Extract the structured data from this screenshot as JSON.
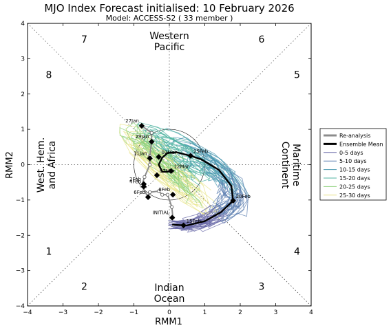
{
  "chart_data": {
    "type": "line",
    "title": "MJO Index Forecast initialised:  10  February 2026",
    "subtitle": "Model: ACCESS-S2 ( 33 member )",
    "xlabel": "RMM1",
    "ylabel": "RMM2",
    "xlim": [
      -4,
      4
    ],
    "ylim": [
      -4,
      4
    ],
    "xticks": [
      "−4",
      "−3",
      "−2",
      "−1",
      "0",
      "1",
      "2",
      "3",
      "4"
    ],
    "yticks": [
      "−4",
      "−3",
      "−2",
      "−1",
      "0",
      "1",
      "2",
      "3",
      "4"
    ],
    "grid": false,
    "legend_position": "right",
    "phases": [
      "1",
      "2",
      "3",
      "4",
      "5",
      "6",
      "7",
      "8"
    ],
    "regions": {
      "top": [
        "Western",
        "Pacific"
      ],
      "bottom": [
        "Indian",
        "Ocean"
      ],
      "left": [
        "West. Hem.",
        "and Africa"
      ],
      "right": [
        "Maritime",
        "Continent"
      ]
    },
    "legend": [
      {
        "label": "Re-analysis",
        "color": "#8c8c8c",
        "width": 3
      },
      {
        "label": "Ensemble Mean",
        "color": "#000000",
        "width": 3
      },
      {
        "label": "0-5 days",
        "color": "#6a6aa8",
        "width": 1
      },
      {
        "label": "5-10 days",
        "color": "#5c7fb0",
        "width": 1
      },
      {
        "label": "10-15 days",
        "color": "#4a97b0",
        "width": 1
      },
      {
        "label": "15-20 days",
        "color": "#4fb3a0",
        "width": 1
      },
      {
        "label": "20-25 days",
        "color": "#8cd07a",
        "width": 1
      },
      {
        "label": "25-30 days",
        "color": "#e8e48a",
        "width": 1
      }
    ],
    "reanalysis": {
      "x": [
        -0.78,
        -0.5,
        -0.5,
        -0.55,
        -0.55,
        -0.7,
        -0.78,
        -0.6,
        -0.55,
        -0.3,
        -0.2,
        -0.05,
        0.07,
        0.1
      ],
      "y": [
        1.1,
        0.9,
        0.65,
        0.25,
        0.0,
        -0.35,
        -0.6,
        -0.92,
        -0.78,
        -0.75,
        -0.85,
        -0.85,
        -1.2,
        -1.5
      ],
      "labels": [
        {
          "text": "27Jan",
          "x": -0.78,
          "y": 1.1
        },
        {
          "text": "29Jan",
          "x": -0.5,
          "y": 0.65
        },
        {
          "text": "31Jan",
          "x": -0.55,
          "y": 0.18
        },
        {
          "text": "2Feb",
          "x": -0.72,
          "y": -0.55
        },
        {
          "text": "4Feb",
          "x": -0.72,
          "y": -0.62
        },
        {
          "text": "6Feb",
          "x": -0.6,
          "y": -0.92
        },
        {
          "text": "8Feb",
          "x": 0.1,
          "y": -0.85
        },
        {
          "text": "INITIAL",
          "x": 0.08,
          "y": -1.5
        }
      ]
    },
    "ensemble_mean": {
      "x": [
        0.08,
        0.5,
        1.0,
        1.45,
        1.8,
        1.75,
        1.4,
        0.9,
        0.6,
        0.2,
        -0.05,
        -0.2,
        -0.3,
        -0.2,
        -0.05,
        0.05
      ],
      "y": [
        -1.7,
        -1.72,
        -1.6,
        -1.35,
        -1.02,
        -0.6,
        -0.15,
        0.15,
        0.25,
        0.35,
        0.33,
        0.2,
        0.0,
        -0.2,
        -0.2,
        -0.18
      ],
      "labels": [
        {
          "text": "15Feb",
          "x": 0.4,
          "y": -1.72
        },
        {
          "text": "20Feb",
          "x": 1.8,
          "y": -1.02
        },
        {
          "text": "25Feb",
          "x": 0.6,
          "y": 0.25
        },
        {
          "text": "02Mar",
          "x": -0.3,
          "y": 0.22
        },
        {
          "text": "07Mar",
          "x": -0.35,
          "y": -0.3
        },
        {
          "text": "12Mar",
          "x": 0.05,
          "y": -0.18
        }
      ]
    }
  }
}
